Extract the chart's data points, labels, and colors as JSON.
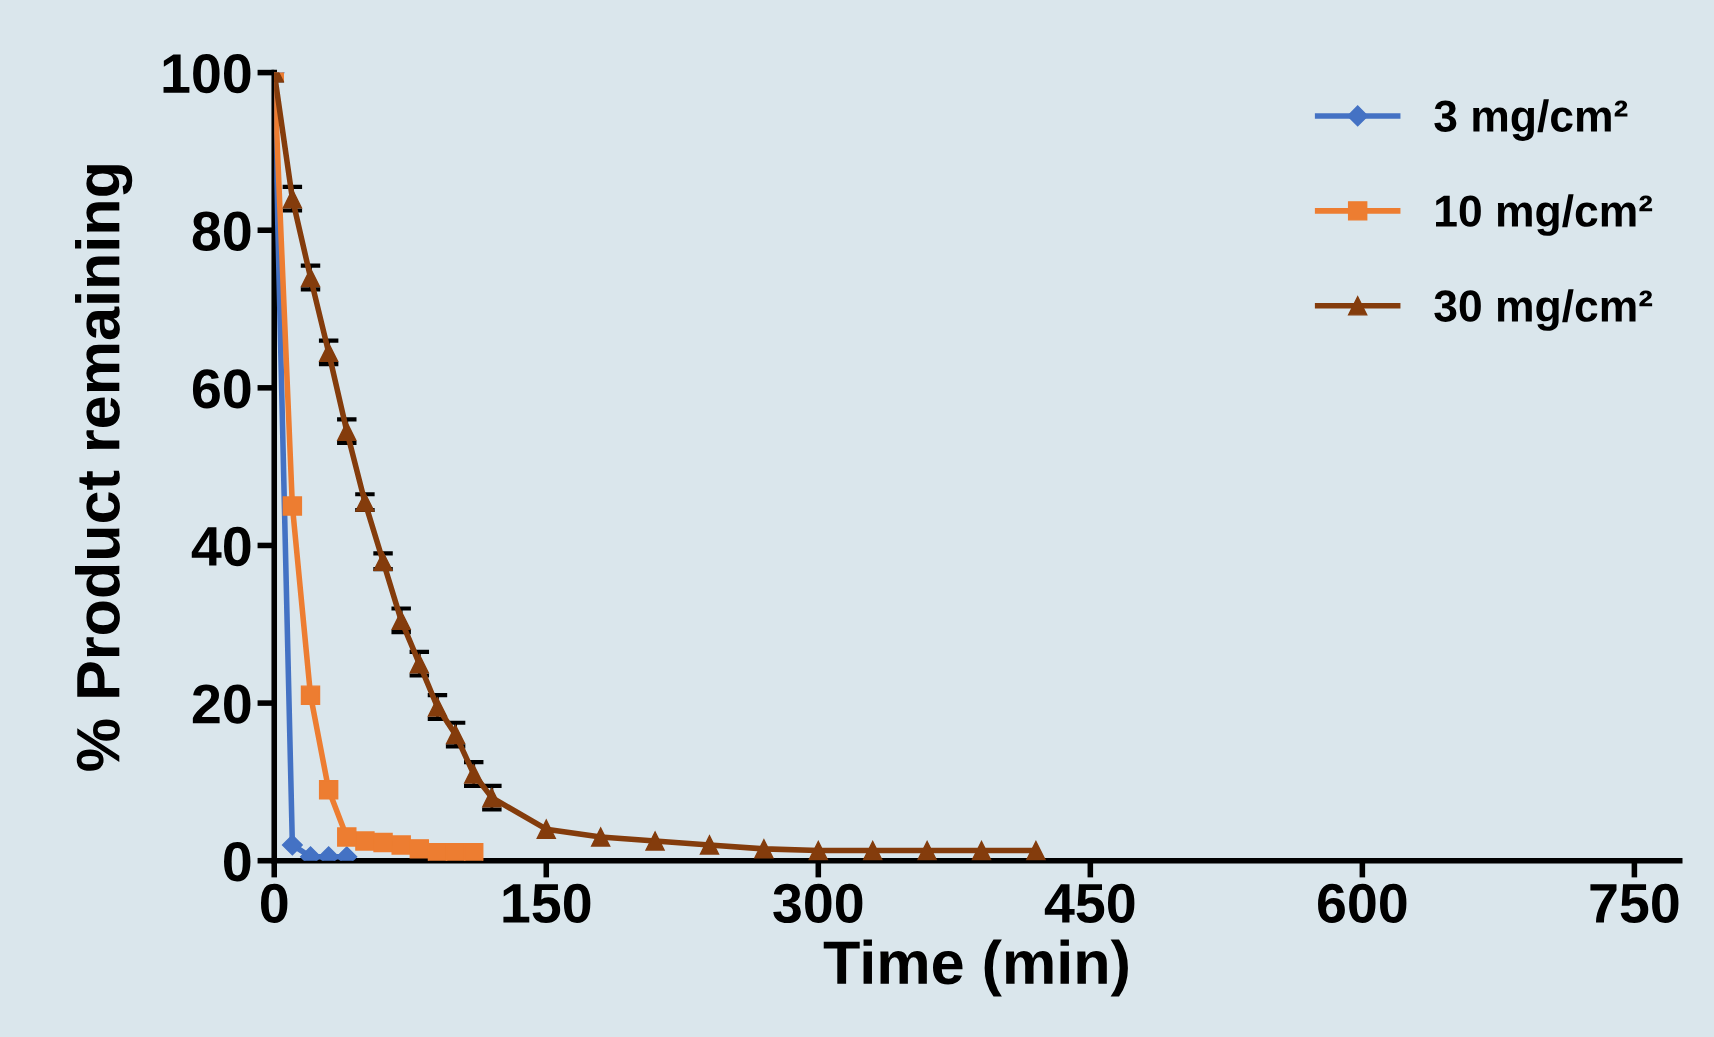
{
  "chart_data": {
    "type": "line",
    "xlabel": "Time (min)",
    "ylabel": "% Product remaining",
    "xlim": [
      0,
      775
    ],
    "xticks": [
      0,
      150,
      300,
      450,
      600,
      750
    ],
    "ylim": [
      0,
      100
    ],
    "yticks": [
      0,
      20,
      40,
      60,
      80,
      100
    ],
    "grid": false,
    "legend": "top right",
    "line_style": "solid",
    "series": [
      {
        "name": "3 mg/cm²",
        "color": "#4472c4",
        "marker": "diamond",
        "x": [
          0,
          10,
          20,
          30,
          40
        ],
        "values": [
          100,
          2,
          0.5,
          0.5,
          0.5
        ]
      },
      {
        "name": "10 mg/cm²",
        "color": "#ed7d31",
        "marker": "square",
        "x": [
          0,
          10,
          20,
          30,
          40,
          50,
          60,
          70,
          80,
          90,
          100,
          110
        ],
        "values": [
          100,
          45,
          21,
          9,
          3,
          2.5,
          2.3,
          2,
          1.5,
          1,
          1,
          1
        ]
      },
      {
        "name": "30 mg/cm²",
        "color": "#843c0c",
        "marker": "triangle",
        "x": [
          0,
          10,
          20,
          30,
          40,
          50,
          60,
          70,
          80,
          90,
          100,
          110,
          120,
          150,
          180,
          210,
          240,
          270,
          300,
          330,
          360,
          390,
          420
        ],
        "values": [
          100,
          84,
          74,
          64.5,
          54.5,
          45.5,
          38,
          30.5,
          25,
          19.5,
          16,
          11,
          8,
          4,
          3,
          2.5,
          2,
          1.5,
          1.3,
          1.3,
          1.3,
          1.3,
          1.3
        ],
        "errors": [
          1,
          1.5,
          1.5,
          1.5,
          1.5,
          1,
          1,
          1.5,
          1.5,
          1.5,
          1.5,
          1.5,
          1.5,
          null,
          null,
          null,
          null,
          null,
          null,
          null,
          null,
          null,
          null
        ]
      }
    ]
  }
}
